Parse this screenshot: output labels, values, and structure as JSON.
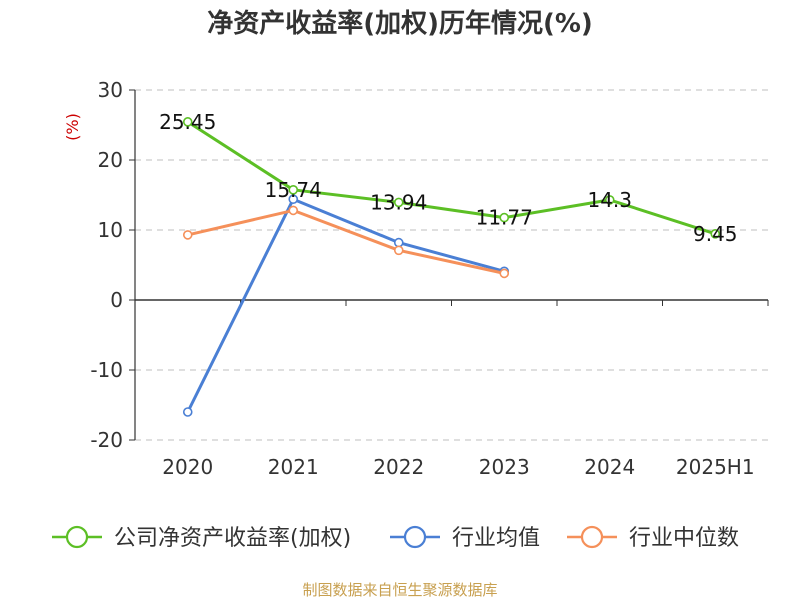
{
  "chart_data": {
    "type": "line",
    "title": "净资产收益率(加权)历年情况(%)",
    "ylabel": "(%)",
    "categories": [
      "2020",
      "2021",
      "2022",
      "2023",
      "2024",
      "2025H1"
    ],
    "ylim": [
      -20,
      30
    ],
    "yticks": [
      30,
      20,
      10,
      0,
      -10,
      -20
    ],
    "grid": true,
    "legend_position": "bottom",
    "series": [
      {
        "name": "公司净资产收益率(加权)",
        "color": "#5cbf25",
        "values": [
          25.45,
          15.74,
          13.94,
          11.77,
          14.3,
          9.45
        ],
        "labels": [
          "25.45",
          "15.74",
          "13.94",
          "11.77",
          "14.3",
          "9.45"
        ]
      },
      {
        "name": "行业均值",
        "color": "#4a7fd4",
        "values": [
          -16.0,
          14.4,
          8.2,
          4.1,
          null,
          null
        ],
        "labels": []
      },
      {
        "name": "行业中位数",
        "color": "#f5905a",
        "values": [
          9.3,
          12.8,
          7.1,
          3.8,
          null,
          null
        ],
        "labels": []
      }
    ]
  },
  "source": "制图数据来自恒生聚源数据库"
}
